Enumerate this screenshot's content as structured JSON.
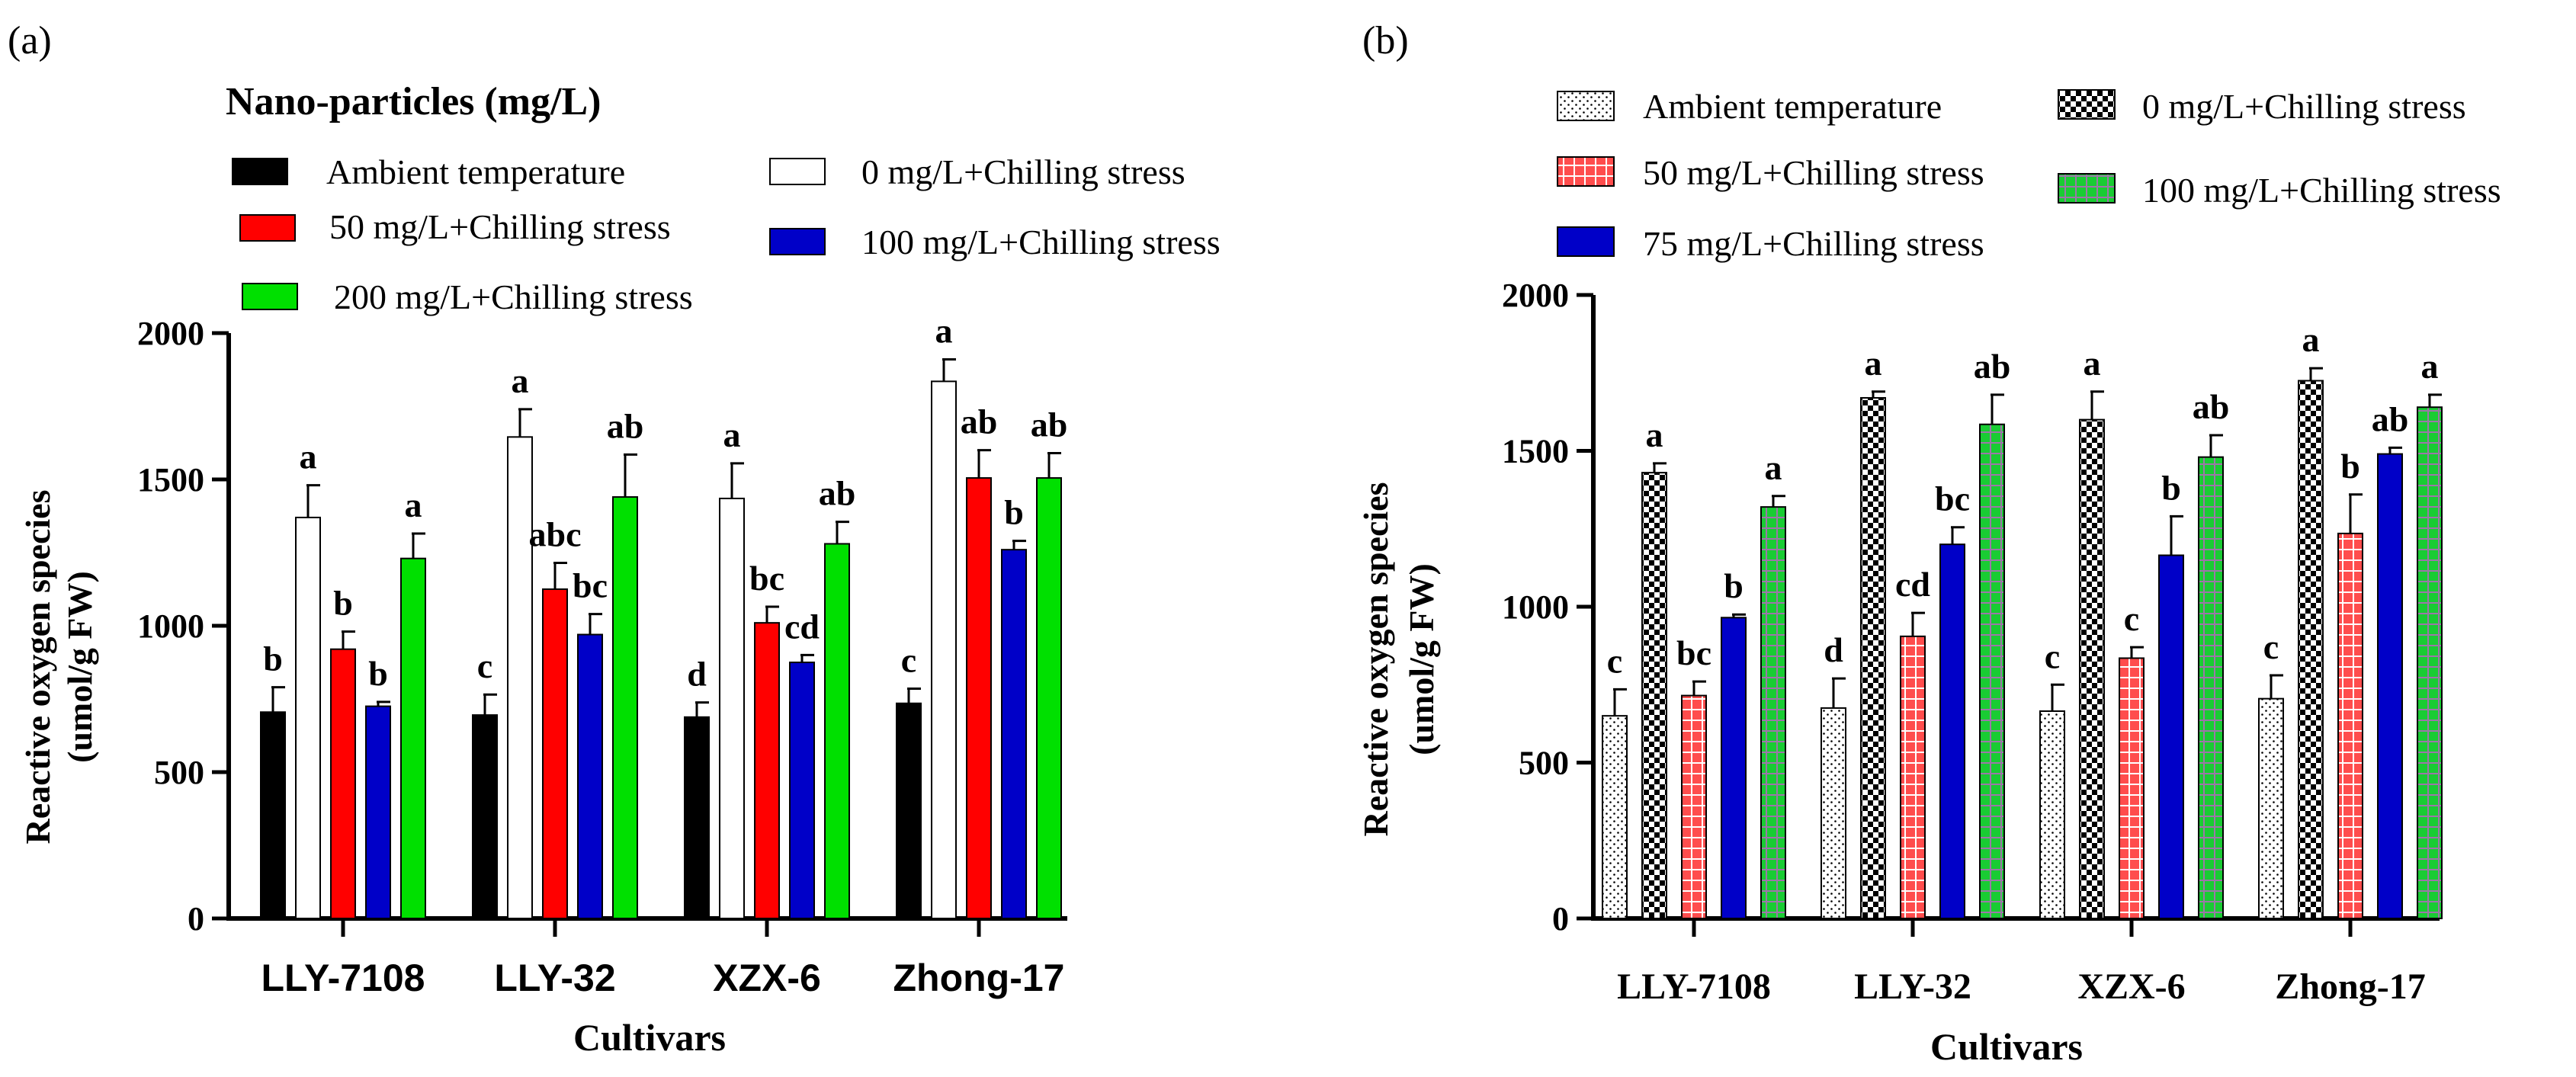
{
  "colors": {
    "black": "#000000",
    "white": "#ffffff",
    "red": "#ff0000",
    "blue": "#0000c8",
    "green": "#00e000",
    "red_b": "#ff4d4d",
    "green_b": "#19cc33",
    "grid_b": "#9c77a8"
  },
  "chart_data": [
    {
      "panel_label": "(a)",
      "type": "bar",
      "title": "Nano-particles (mg/L)",
      "xlabel": "Cultivars",
      "ylabel_line1": "Reactive oxygen species",
      "ylabel_line2": "(umol/g FW)",
      "ylim": [
        0,
        2000
      ],
      "yticks": [
        0,
        500,
        1000,
        1500,
        2000
      ],
      "categories": [
        "LLY-7108",
        "LLY-32",
        "XZX-6",
        "Zhong-17"
      ],
      "series": [
        {
          "name": "Ambient temperature",
          "fill": "black",
          "values": [
            705,
            695,
            688,
            735
          ],
          "errors": [
            85,
            70,
            50,
            50
          ],
          "letters": [
            "b",
            "c",
            "d",
            "c"
          ]
        },
        {
          "name": "0 mg/L+Chilling stress",
          "fill": "white",
          "values": [
            1370,
            1645,
            1435,
            1835
          ],
          "errors": [
            110,
            95,
            120,
            75
          ],
          "letters": [
            "a",
            "a",
            "a",
            "a"
          ]
        },
        {
          "name": "50 mg/L+Chilling stress",
          "fill": "red",
          "values": [
            920,
            1125,
            1010,
            1505
          ],
          "errors": [
            60,
            90,
            55,
            95
          ],
          "letters": [
            "b",
            "abc",
            "bc",
            "ab"
          ]
        },
        {
          "name": "100 mg/L+Chilling stress",
          "fill": "blue",
          "values": [
            725,
            970,
            875,
            1260
          ],
          "errors": [
            15,
            70,
            25,
            30
          ],
          "letters": [
            "b",
            "bc",
            "cd",
            "b"
          ]
        },
        {
          "name": "200 mg/L+Chilling stress",
          "fill": "green",
          "values": [
            1230,
            1440,
            1280,
            1505
          ],
          "errors": [
            85,
            145,
            75,
            85
          ],
          "letters": [
            "a",
            "ab",
            "ab",
            "ab"
          ]
        }
      ]
    },
    {
      "panel_label": "(b)",
      "type": "bar",
      "title": "",
      "xlabel": "Cultivars",
      "ylabel_line1": "Reactive oxygen species",
      "ylabel_line2": "(umol/g FW)",
      "ylim": [
        0,
        2000
      ],
      "yticks": [
        0,
        500,
        1000,
        1500,
        2000
      ],
      "categories": [
        "LLY-7108",
        "LLY-32",
        "XZX-6",
        "Zhong-17"
      ],
      "series": [
        {
          "name": "Ambient temperature",
          "fill": "dots",
          "values": [
            650,
            675,
            665,
            705
          ],
          "errors": [
            85,
            95,
            85,
            75
          ],
          "letters": [
            "c",
            "d",
            "c",
            "c"
          ]
        },
        {
          "name": "0 mg/L+Chilling stress",
          "fill": "checker",
          "values": [
            1430,
            1670,
            1600,
            1725
          ],
          "errors": [
            30,
            20,
            90,
            40
          ],
          "letters": [
            "a",
            "a",
            "a",
            "a"
          ]
        },
        {
          "name": "50 mg/L+Chilling stress",
          "fill": "red-grid",
          "values": [
            715,
            905,
            835,
            1235
          ],
          "errors": [
            45,
            75,
            35,
            125
          ],
          "letters": [
            "bc",
            "cd",
            "c",
            "b"
          ]
        },
        {
          "name": "75 mg/L+Chilling stress",
          "fill": "blue",
          "values": [
            965,
            1200,
            1165,
            1490
          ],
          "errors": [
            10,
            55,
            125,
            20
          ],
          "letters": [
            "b",
            "bc",
            "b",
            "ab"
          ]
        },
        {
          "name": "100 mg/L+Chilling stress",
          "fill": "green-grid",
          "values": [
            1320,
            1585,
            1480,
            1640
          ],
          "errors": [
            35,
            95,
            70,
            40
          ],
          "letters": [
            "a",
            "ab",
            "ab",
            "a"
          ]
        }
      ]
    }
  ]
}
